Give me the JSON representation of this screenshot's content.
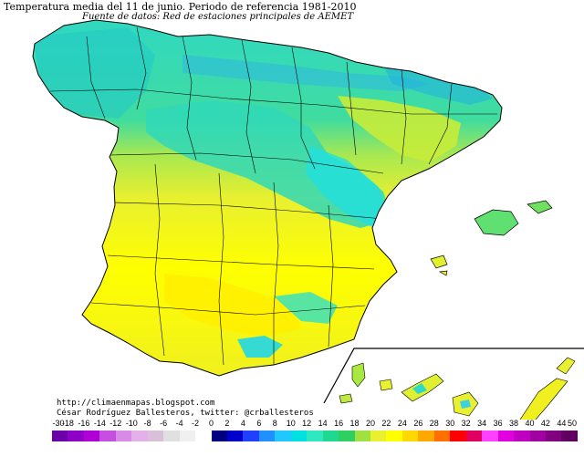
{
  "title": "Temperatura media del 11 de junio. Periodo de referencia 1981-2010",
  "subtitle": "Fuente de datos: Red de estaciones principales de AEMET",
  "credits": {
    "url": "http://climaenmapas.blogspot.com",
    "author": "César Rodríguez Ballesteros, twitter: @crballesteros"
  },
  "legend": {
    "labels": [
      "-30",
      "-18",
      "-16",
      "-14",
      "-12",
      "-10",
      "-8",
      "-6",
      "-4",
      "-2",
      "0",
      "2",
      "4",
      "6",
      "8",
      "10",
      "12",
      "14",
      "16",
      "18",
      "20",
      "22",
      "24",
      "26",
      "28",
      "30",
      "32",
      "34",
      "36",
      "38",
      "40",
      "42",
      "44",
      "50"
    ],
    "colors": [
      "#6a00a8",
      "#8f00c7",
      "#b000d8",
      "#c64ee0",
      "#d98ae6",
      "#e3b0ea",
      "#d8c0d8",
      "#e0e0e0",
      "#f0f0f0",
      "#ffffff",
      "#000080",
      "#0000cc",
      "#2040ff",
      "#2090ff",
      "#20c8ff",
      "#00e0e0",
      "#30e8c0",
      "#20d890",
      "#30d060",
      "#a0e040",
      "#e8f030",
      "#ffff00",
      "#ffd800",
      "#ffa800",
      "#ff7000",
      "#ff0000",
      "#e00060",
      "#ff40ff",
      "#e000e0",
      "#c000c0",
      "#a000a0",
      "#800080",
      "#600060"
    ]
  },
  "map": {
    "region": "Península Ibérica, Baleares y Canarias",
    "colors": {
      "north_cool": "#30d8b0",
      "mid_green": "#60e060",
      "warm_yellow": "#e8f030",
      "hot_yellow": "#ffff00",
      "mountain_cyan": "#20e8e8"
    }
  }
}
